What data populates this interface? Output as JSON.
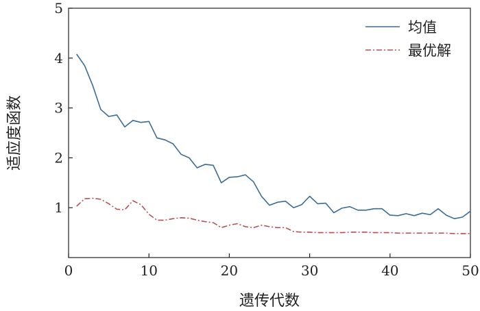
{
  "chart_data": {
    "type": "line",
    "xlabel": "遗传代数",
    "ylabel": "适应度函数",
    "xlim": [
      0,
      50
    ],
    "ylim": [
      0,
      5
    ],
    "xticks": [
      0,
      10,
      20,
      30,
      40,
      50
    ],
    "yticks": [
      1,
      2,
      3,
      4,
      5
    ],
    "grid": false,
    "legend_position": "top-right",
    "series": [
      {
        "name": "均值",
        "color": "#3a6b96",
        "style": "solid",
        "x": [
          1,
          2,
          3,
          4,
          5,
          6,
          7,
          8,
          9,
          10,
          11,
          12,
          13,
          14,
          15,
          16,
          17,
          18,
          19,
          20,
          21,
          22,
          23,
          24,
          25,
          26,
          27,
          28,
          29,
          30,
          31,
          32,
          33,
          34,
          35,
          36,
          37,
          38,
          39,
          40,
          41,
          42,
          43,
          44,
          45,
          46,
          47,
          48,
          49,
          50
        ],
        "values": [
          4.08,
          3.85,
          3.45,
          2.97,
          2.83,
          2.86,
          2.62,
          2.75,
          2.71,
          2.73,
          2.4,
          2.36,
          2.28,
          2.07,
          2.0,
          1.8,
          1.87,
          1.85,
          1.5,
          1.61,
          1.62,
          1.66,
          1.52,
          1.23,
          1.05,
          1.11,
          1.13,
          1.0,
          1.06,
          1.23,
          1.08,
          1.09,
          0.9,
          0.99,
          1.02,
          0.95,
          0.95,
          0.98,
          0.98,
          0.85,
          0.84,
          0.88,
          0.84,
          0.89,
          0.86,
          0.98,
          0.85,
          0.78,
          0.81,
          0.93
        ]
      },
      {
        "name": "最优解",
        "color": "#b5504f",
        "style": "dashdot",
        "x": [
          1,
          2,
          3,
          4,
          5,
          6,
          7,
          8,
          9,
          10,
          11,
          12,
          13,
          14,
          15,
          16,
          17,
          18,
          19,
          20,
          21,
          22,
          23,
          24,
          25,
          26,
          27,
          28,
          29,
          30,
          31,
          32,
          33,
          34,
          35,
          36,
          37,
          38,
          39,
          40,
          41,
          42,
          43,
          44,
          45,
          46,
          47,
          48,
          49,
          50
        ],
        "values": [
          1.03,
          1.18,
          1.19,
          1.17,
          1.08,
          0.97,
          0.96,
          1.14,
          1.06,
          0.87,
          0.75,
          0.75,
          0.78,
          0.8,
          0.79,
          0.75,
          0.72,
          0.7,
          0.6,
          0.65,
          0.68,
          0.62,
          0.6,
          0.65,
          0.62,
          0.6,
          0.6,
          0.52,
          0.51,
          0.51,
          0.5,
          0.5,
          0.5,
          0.5,
          0.51,
          0.51,
          0.51,
          0.5,
          0.5,
          0.5,
          0.49,
          0.49,
          0.49,
          0.49,
          0.49,
          0.49,
          0.49,
          0.48,
          0.48,
          0.48
        ]
      }
    ]
  }
}
